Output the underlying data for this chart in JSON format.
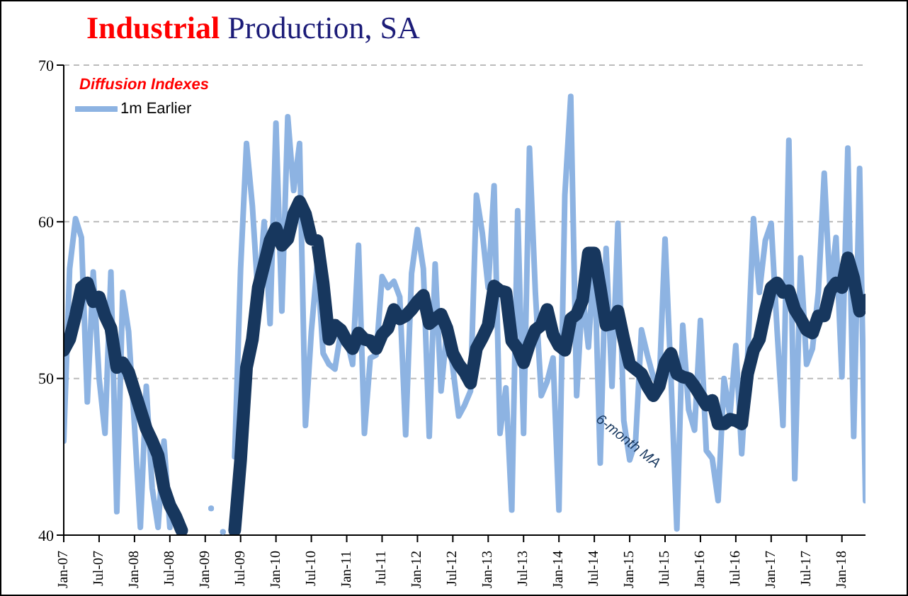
{
  "chart_data": {
    "type": "line",
    "title": "Industrial Production, SA",
    "annotations": [
      "Diffusion Indexes",
      "6-month MA"
    ],
    "categories": [
      "Jan-07",
      null,
      null,
      null,
      null,
      null,
      "Jul-07",
      null,
      null,
      null,
      null,
      null,
      "Jan-08",
      null,
      null,
      null,
      null,
      null,
      "Jul-08",
      null,
      null,
      null,
      null,
      null,
      "Jan-09",
      null,
      null,
      null,
      null,
      null,
      "Jul-09",
      null,
      null,
      null,
      null,
      null,
      "Jan-10",
      null,
      null,
      null,
      null,
      null,
      "Jul-10",
      null,
      null,
      null,
      null,
      null,
      "Jan-11",
      null,
      null,
      null,
      null,
      null,
      "Jul-11",
      null,
      null,
      null,
      null,
      null,
      "Jan-12",
      null,
      null,
      null,
      null,
      null,
      "Jul-12",
      null,
      null,
      null,
      null,
      null,
      "Jan-13",
      null,
      null,
      null,
      null,
      null,
      "Jul-13",
      null,
      null,
      null,
      null,
      null,
      "Jan-14",
      null,
      null,
      null,
      null,
      null,
      "Jul-14",
      null,
      null,
      null,
      null,
      null,
      "Jan-15",
      null,
      null,
      null,
      null,
      null,
      "Jul-15",
      null,
      null,
      null,
      null,
      null,
      "Jan-16",
      null,
      null,
      null,
      null,
      null,
      "Jul-16",
      null,
      null,
      null,
      null,
      null,
      "Jan-17",
      null,
      null,
      null,
      null,
      null,
      "Jul-17",
      null,
      null,
      null,
      null,
      null,
      "Jan-18",
      null,
      null,
      null,
      null
    ],
    "series": [
      {
        "name": "1m Earlier",
        "color": "#8db3e2",
        "values": [
          46,
          57,
          60.2,
          59,
          48.5,
          56.8,
          50,
          46.5,
          56.8,
          41.5,
          55.5,
          53,
          47,
          40.5,
          49.5,
          43,
          40.5,
          46,
          40.5,
          null,
          null,
          null,
          null,
          null,
          null,
          41.7,
          null,
          40.2,
          null,
          45,
          57,
          65,
          61,
          55,
          60,
          53.5,
          66.3,
          54.3,
          66.7,
          62,
          65,
          47,
          53,
          57.3,
          51.6,
          50.9,
          50.6,
          53,
          52.5,
          50.9,
          58.5,
          46.5,
          51.3,
          51.5,
          56.5,
          55.8,
          56.2,
          55.2,
          46.4,
          56.7,
          59.5,
          57,
          46.3,
          57.3,
          49.2,
          53.1,
          50.7,
          47.6,
          48.3,
          49.2,
          61.7,
          59.3,
          55.8,
          62.3,
          46.5,
          49.4,
          41.6,
          60.7,
          46.5,
          64.7,
          55.5,
          48.9,
          49.8,
          51.3,
          41.6,
          61.7,
          68,
          48.9,
          55.5,
          52,
          58,
          44.6,
          58.3,
          49.5,
          59.9,
          47.3,
          44.8,
          46,
          53.1,
          51.5,
          50.1,
          49.5,
          58.9,
          50.1,
          40.4,
          53.4,
          48,
          46.7,
          53.7,
          45.4,
          44.9,
          42.2,
          50,
          47.6,
          52.1,
          45.2,
          51.3,
          60.2,
          55.5,
          58.8,
          59.9,
          53.1,
          47,
          65.2,
          43.6,
          57.7,
          50.9,
          51.9,
          55.5,
          63.1,
          55.5,
          59,
          50.1,
          64.7,
          46.3,
          63.4,
          42.2
        ]
      },
      {
        "color": "#17375e",
        "values": [
          51.8,
          52.5,
          54,
          55.8,
          56.1,
          54.9,
          55.2,
          54,
          53.2,
          50.7,
          51,
          50.4,
          49.2,
          48,
          46.8,
          46,
          45.1,
          43,
          41.9,
          41.2,
          40.3,
          null,
          null,
          null,
          null,
          null,
          null,
          null,
          null,
          40.3,
          44.8,
          50.7,
          52.5,
          55.8,
          57.3,
          58.8,
          59.6,
          58.5,
          58.9,
          60.5,
          61.3,
          60.5,
          58.9,
          58.8,
          56.1,
          52.5,
          53.4,
          53.1,
          52.4,
          51.9,
          52.9,
          52.5,
          52.4,
          51.9,
          52.8,
          53.2,
          54.4,
          53.8,
          54,
          54.4,
          54.9,
          55.3,
          53.5,
          53.8,
          54.1,
          53.2,
          51.6,
          50.9,
          50.4,
          49.7,
          51.9,
          52.6,
          53.4,
          55.9,
          55.6,
          55.5,
          52.4,
          51.9,
          51,
          52.2,
          53.1,
          53.4,
          54.4,
          52.8,
          52.1,
          51.8,
          53.8,
          54.1,
          55,
          58,
          58,
          55.8,
          53.4,
          53.5,
          54.3,
          52.5,
          50.9,
          50.6,
          50.3,
          49.5,
          48.9,
          49.5,
          51,
          51.6,
          50.3,
          50.1,
          50,
          49.5,
          48.9,
          48.3,
          48.6,
          47.1,
          47.1,
          47.4,
          47.3,
          47.1,
          50.3,
          51.8,
          52.5,
          54.3,
          55.8,
          56.1,
          55.5,
          55.6,
          54.4,
          53.8,
          53.1,
          52.9,
          54,
          54,
          55.6,
          56.1,
          55.8,
          57.7,
          56.4,
          54.3,
          55
        ]
      }
    ],
    "ylim": [
      40,
      70
    ],
    "yticks": [
      40,
      50,
      60,
      70
    ],
    "grid": "y",
    "legend": "top left",
    "marker": "none",
    "line_style": "solid"
  }
}
